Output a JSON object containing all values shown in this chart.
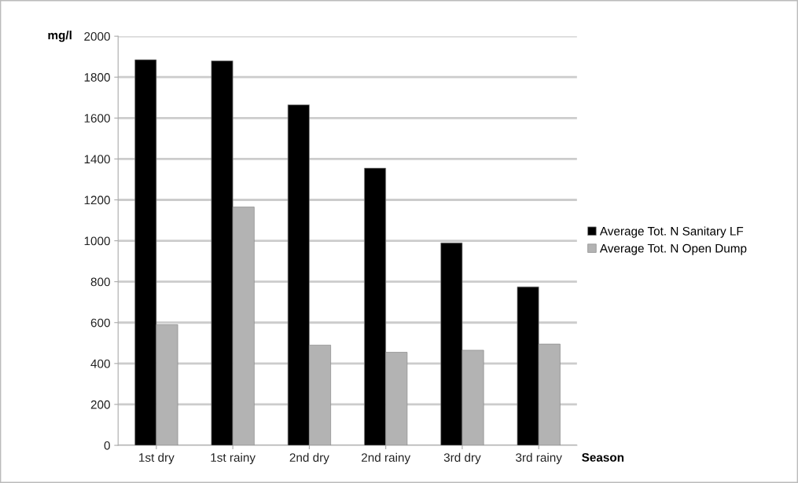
{
  "chart_data": {
    "type": "bar",
    "xlabel": "Season",
    "ylabel": "mg/l",
    "categories": [
      "1st dry",
      "1st rainy",
      "2nd dry",
      "2nd rainy",
      "3rd dry",
      "3rd rainy"
    ],
    "series": [
      {
        "name": "Average Tot. N Sanitary LF",
        "color": "#000000",
        "values": [
          1885,
          1880,
          1665,
          1355,
          990,
          775
        ]
      },
      {
        "name": "Average Tot. N Open Dump",
        "color": "#b3b3b3",
        "values": [
          590,
          1165,
          490,
          455,
          465,
          495
        ]
      }
    ],
    "ylim": [
      0,
      2000
    ],
    "yticks": [
      0,
      200,
      400,
      600,
      800,
      1000,
      1200,
      1400,
      1600,
      1800,
      2000
    ],
    "grid": "y",
    "legend": "right"
  }
}
